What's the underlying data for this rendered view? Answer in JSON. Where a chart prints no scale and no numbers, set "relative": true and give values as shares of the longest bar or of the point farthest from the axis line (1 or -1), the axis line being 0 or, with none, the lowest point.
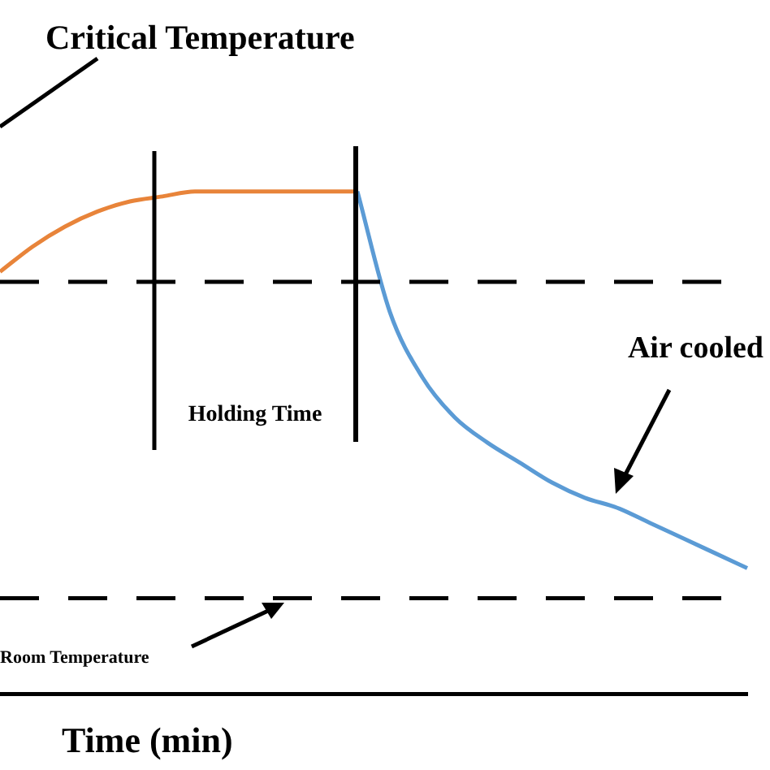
{
  "chart_data": {
    "type": "line",
    "relative": true,
    "xlabel": "Time (min)",
    "categories": [
      null,
      null,
      null,
      null,
      null,
      null,
      null,
      null,
      null,
      null,
      null,
      null,
      null,
      null,
      null,
      null,
      null,
      null,
      null,
      null,
      null,
      null,
      null,
      null
    ],
    "series": [
      {
        "color": "#e8843a",
        "values": [
          0.84,
          0.89,
          0.93,
          0.96,
          0.98,
          0.99,
          1,
          1,
          1,
          1,
          1,
          1,
          null,
          null,
          null,
          null,
          null,
          null,
          null,
          null,
          null,
          null,
          null,
          null
        ]
      },
      {
        "color": "#5b9bd5",
        "values": [
          null,
          null,
          null,
          null,
          null,
          null,
          null,
          null,
          null,
          null,
          null,
          1,
          0.76,
          0.63,
          0.55,
          0.5,
          0.46,
          0.42,
          0.39,
          0.37,
          0.34,
          0.31,
          0.28,
          0.25
        ]
      }
    ],
    "ref_lines": [
      {
        "axis": "y",
        "value": 0.82,
        "line_style": "dashed",
        "color": "#000000"
      },
      {
        "axis": "y",
        "value": 0.19,
        "label": "Room Temperature",
        "line_style": "dashed",
        "color": "#000000"
      }
    ],
    "annotations": [
      "Critical Temperature",
      "Holding Time",
      "Air cooled"
    ],
    "grid": false,
    "legend": false,
    "marker": "none",
    "line_style": "solid"
  }
}
